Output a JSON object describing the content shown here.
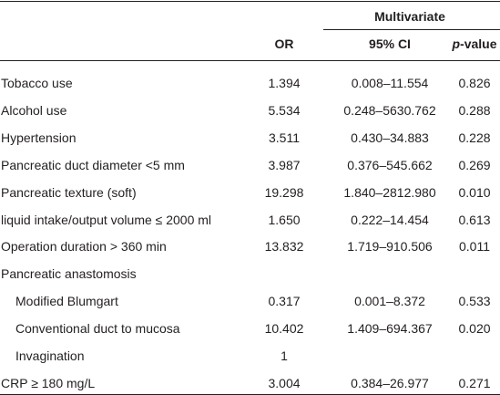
{
  "table": {
    "group_header": "Multivariate",
    "header": [
      "OR",
      "95% CI",
      "p-value"
    ],
    "rows": [
      [
        "Tobacco use",
        "1.394",
        "0.008–11.554",
        "0.826"
      ],
      [
        "Alcohol use",
        "5.534",
        "0.248–5630.762",
        "0.288"
      ],
      [
        "Hypertension",
        "3.511",
        "0.430–34.883",
        "0.228"
      ],
      [
        "Pancreatic duct diameter <5 mm",
        "3.987",
        "0.376–545.662",
        "0.269"
      ],
      [
        "Pancreatic texture (soft)",
        "19.298",
        "1.840–2812.980",
        "0.010"
      ],
      [
        "liquid intake/output volume ≤ 2000 ml",
        "1.650",
        "0.222–14.454",
        "0.613"
      ],
      [
        "Operation duration > 360 min",
        "13.832",
        "1.719–910.506",
        "0.011"
      ],
      {
        "label": "Pancreatic anastomosis",
        "rows": [
          [
            "Modified Blumgart",
            "0.317",
            "0.001–8.372",
            "0.533"
          ],
          [
            "Conventional duct to mucosa",
            "10.402",
            "1.409–694.367",
            "0.020"
          ],
          [
            "Invagination",
            "1"
          ]
        ]
      },
      [
        "CRP ≥ 180 mg/L",
        "3.004",
        "0.384–26.977",
        "0.271"
      ]
    ]
  }
}
